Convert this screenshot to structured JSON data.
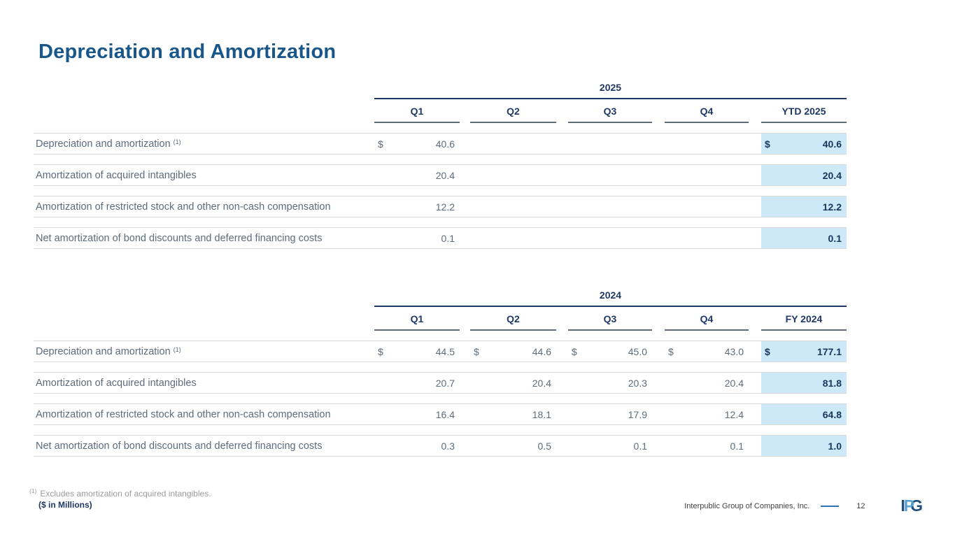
{
  "page": {
    "title": "Depreciation and Amortization",
    "footnote": {
      "marker": "(1)",
      "text": "Excludes amortization of acquired intangibles."
    },
    "units_note": "($ in Millions)",
    "footer": {
      "company": "Interpublic Group of Companies, Inc.",
      "page_number": "12",
      "logo_letters": [
        "I",
        "P",
        "G"
      ]
    }
  },
  "colors": {
    "title_blue": "#19578a",
    "header_navy": "#1f3864",
    "text_slate": "#5d6c7b",
    "total_navy": "#16365c",
    "highlight_blue": "#cde9f7",
    "row_line": "#d9d9d9",
    "underline_gray": "#5f6b76",
    "footnote_gray": "#9b9b9b",
    "footer_text": "#404040",
    "dash_blue": "#2e74b5",
    "logo_dark": "#1f4e79",
    "logo_light": "#56a0d3"
  },
  "tables": [
    {
      "year": "2025",
      "quarter_columns": [
        "Q1",
        "Q2",
        "Q3",
        "Q4"
      ],
      "total_column": "YTD 2025",
      "rows": [
        {
          "label": "Depreciation and amortization",
          "footnote_ref": "(1)",
          "dollar_sign": true,
          "values": [
            "40.6",
            "",
            "",
            ""
          ],
          "total": "40.6"
        },
        {
          "label": "Amortization of acquired intangibles",
          "footnote_ref": "",
          "dollar_sign": false,
          "values": [
            "20.4",
            "",
            "",
            ""
          ],
          "total": "20.4"
        },
        {
          "label": "Amortization of restricted stock and other non-cash compensation",
          "footnote_ref": "",
          "dollar_sign": false,
          "values": [
            "12.2",
            "",
            "",
            ""
          ],
          "total": "12.2"
        },
        {
          "label": "Net amortization of bond discounts and deferred financing costs",
          "footnote_ref": "",
          "dollar_sign": false,
          "values": [
            "0.1",
            "",
            "",
            ""
          ],
          "total": "0.1"
        }
      ]
    },
    {
      "year": "2024",
      "quarter_columns": [
        "Q1",
        "Q2",
        "Q3",
        "Q4"
      ],
      "total_column": "FY 2024",
      "rows": [
        {
          "label": "Depreciation and amortization",
          "footnote_ref": "(1)",
          "dollar_sign": true,
          "values": [
            "44.5",
            "44.6",
            "45.0",
            "43.0"
          ],
          "total": "177.1"
        },
        {
          "label": "Amortization of acquired intangibles",
          "footnote_ref": "",
          "dollar_sign": false,
          "values": [
            "20.7",
            "20.4",
            "20.3",
            "20.4"
          ],
          "total": "81.8"
        },
        {
          "label": "Amortization of restricted stock and other non-cash compensation",
          "footnote_ref": "",
          "dollar_sign": false,
          "values": [
            "16.4",
            "18.1",
            "17.9",
            "12.4"
          ],
          "total": "64.8"
        },
        {
          "label": "Net amortization of bond discounts and deferred financing costs",
          "footnote_ref": "",
          "dollar_sign": false,
          "values": [
            "0.3",
            "0.5",
            "0.1",
            "0.1"
          ],
          "total": "1.0"
        }
      ]
    }
  ]
}
